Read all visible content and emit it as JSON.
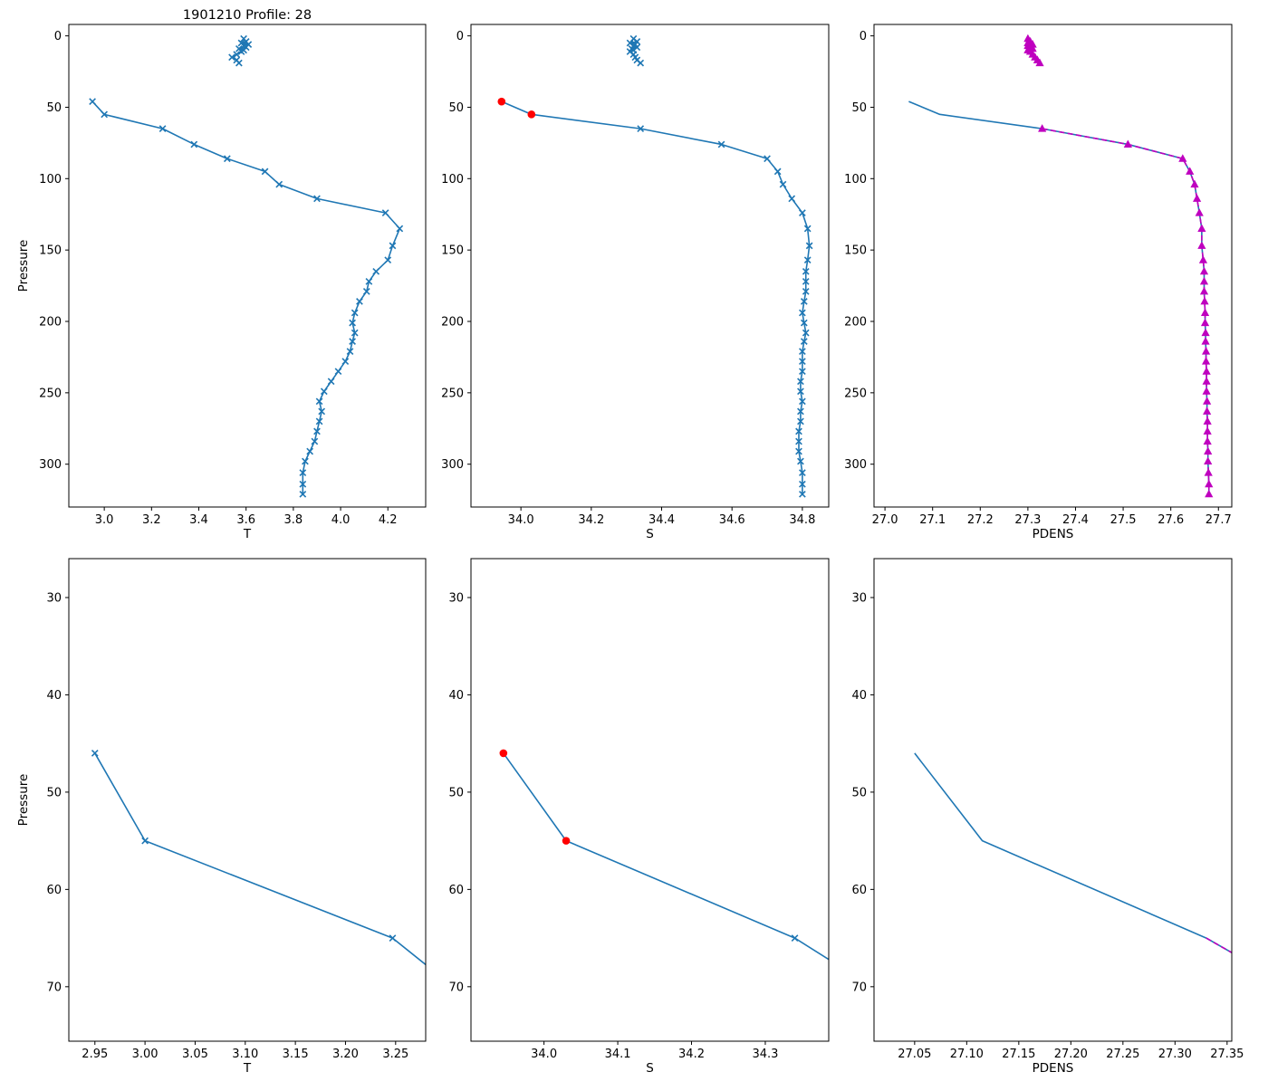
{
  "figure": {
    "background": "#ffffff",
    "colors": {
      "profile_line": "#1f77b4",
      "flagged_point": "#ff0000",
      "pdens_overlay": "#bf00bf",
      "axis": "#000000",
      "text": "#000000"
    }
  },
  "chart_data": [
    {
      "id": "T-full",
      "type": "line",
      "title": "1901210 Profile: 28",
      "xlabel": "T",
      "ylabel": "Pressure",
      "y_inverted": true,
      "xlim": [
        2.85,
        4.36
      ],
      "ylim": [
        -8,
        330
      ],
      "xticks": {
        "values": [
          3.0,
          3.2,
          3.4,
          3.6,
          3.8,
          4.0,
          4.2
        ],
        "labels": [
          "3.0",
          "3.2",
          "3.4",
          "3.6",
          "3.8",
          "4.0",
          "4.2"
        ]
      },
      "yticks": {
        "values": [
          0,
          50,
          100,
          150,
          200,
          250,
          300
        ],
        "labels": [
          "0",
          "50",
          "100",
          "150",
          "200",
          "250",
          "300"
        ]
      },
      "series": [
        {
          "name": "surface-cluster-T",
          "color": "#1f77b4",
          "line": true,
          "marker": "x",
          "marker_from": 0,
          "x": [
            3.59,
            3.6,
            3.58,
            3.61,
            3.59,
            3.6,
            3.57,
            3.59,
            3.58,
            3.56,
            3.54,
            3.56,
            3.57
          ],
          "y": [
            2,
            4,
            5,
            6,
            7,
            8,
            9,
            10,
            11,
            13,
            15,
            17,
            19
          ]
        },
        {
          "name": "main-profile-T",
          "color": "#1f77b4",
          "line": true,
          "marker": "x",
          "marker_from": 0,
          "x": [
            2.95,
            3.0,
            3.247,
            3.38,
            3.52,
            3.68,
            3.74,
            3.9,
            4.19,
            4.25,
            4.22,
            4.2,
            4.15,
            4.12,
            4.11,
            4.08,
            4.06,
            4.05,
            4.06,
            4.05,
            4.04,
            4.02,
            3.99,
            3.96,
            3.93,
            3.91,
            3.92,
            3.91,
            3.9,
            3.89,
            3.87,
            3.85,
            3.84,
            3.84,
            3.84
          ],
          "y": [
            46,
            55,
            65,
            76,
            86,
            95,
            104,
            114,
            124,
            135,
            147,
            157,
            165,
            172,
            179,
            186,
            194,
            201,
            208,
            214,
            221,
            228,
            235,
            242,
            249,
            256,
            263,
            270,
            277,
            284,
            291,
            298,
            306,
            314,
            321
          ]
        }
      ]
    },
    {
      "id": "S-full",
      "type": "line",
      "title": null,
      "xlabel": "S",
      "ylabel": null,
      "y_inverted": true,
      "xlim": [
        33.858,
        34.875
      ],
      "ylim": [
        -8,
        330
      ],
      "xticks": {
        "values": [
          34.0,
          34.2,
          34.4,
          34.6,
          34.8
        ],
        "labels": [
          "34.0",
          "34.2",
          "34.4",
          "34.6",
          "34.8"
        ]
      },
      "yticks": {
        "values": [
          0,
          50,
          100,
          150,
          200,
          250,
          300
        ],
        "labels": [
          "0",
          "50",
          "100",
          "150",
          "200",
          "250",
          "300"
        ]
      },
      "series": [
        {
          "name": "surface-cluster-S",
          "color": "#1f77b4",
          "line": true,
          "marker": "x",
          "marker_from": 0,
          "x": [
            34.32,
            34.33,
            34.31,
            34.325,
            34.32,
            34.33,
            34.315,
            34.32,
            34.31,
            34.32,
            34.325,
            34.33,
            34.34
          ],
          "y": [
            2,
            4,
            5,
            6,
            7,
            8,
            9,
            10,
            11,
            13,
            15,
            17,
            19
          ]
        },
        {
          "name": "main-profile-S",
          "color": "#1f77b4",
          "line": true,
          "marker": "x",
          "marker_from": 2,
          "x": [
            33.945,
            34.03,
            34.34,
            34.57,
            34.7,
            34.73,
            34.745,
            34.77,
            34.8,
            34.815,
            34.82,
            34.815,
            34.81,
            34.81,
            34.81,
            34.805,
            34.8,
            34.805,
            34.81,
            34.805,
            34.8,
            34.8,
            34.8,
            34.795,
            34.795,
            34.8,
            34.795,
            34.795,
            34.79,
            34.79,
            34.79,
            34.795,
            34.8,
            34.8,
            34.8
          ],
          "y": [
            46,
            55,
            65,
            76,
            86,
            95,
            104,
            114,
            124,
            135,
            147,
            157,
            165,
            172,
            179,
            186,
            194,
            201,
            208,
            214,
            221,
            228,
            235,
            242,
            249,
            256,
            263,
            270,
            277,
            284,
            291,
            298,
            306,
            314,
            321
          ]
        },
        {
          "name": "flagged-points-S",
          "color": "#ff0000",
          "line": false,
          "marker": "circle",
          "marker_from": 0,
          "x": [
            33.945,
            34.03
          ],
          "y": [
            46,
            55
          ]
        }
      ]
    },
    {
      "id": "PDENS-full",
      "type": "line",
      "title": null,
      "xlabel": "PDENS",
      "ylabel": null,
      "y_inverted": true,
      "xlim": [
        26.977,
        27.728
      ],
      "ylim": [
        -8,
        330
      ],
      "xticks": {
        "values": [
          27.0,
          27.1,
          27.2,
          27.3,
          27.4,
          27.5,
          27.6,
          27.7
        ],
        "labels": [
          "27.0",
          "27.1",
          "27.2",
          "27.3",
          "27.4",
          "27.5",
          "27.6",
          "27.7"
        ]
      },
      "yticks": {
        "values": [
          0,
          50,
          100,
          150,
          200,
          250,
          300
        ],
        "labels": [
          "0",
          "50",
          "100",
          "150",
          "200",
          "250",
          "300"
        ]
      },
      "series": [
        {
          "name": "surface-cluster-pdens-line",
          "color": "#1f77b4",
          "line": true,
          "marker": null,
          "marker_from": 0,
          "x": [
            27.3,
            27.305,
            27.3,
            27.31,
            27.3,
            27.305,
            27.31,
            27.3,
            27.305,
            27.31,
            27.315,
            27.32,
            27.325
          ],
          "y": [
            2,
            4,
            5,
            6,
            7,
            8,
            9,
            10,
            11,
            13,
            15,
            17,
            19
          ]
        },
        {
          "name": "surface-cluster-pdens-overlay",
          "color": "#bf00bf",
          "line": false,
          "marker": "triangle",
          "marker_from": 0,
          "x": [
            27.3,
            27.305,
            27.3,
            27.31,
            27.3,
            27.305,
            27.31,
            27.3,
            27.305,
            27.31,
            27.315,
            27.32,
            27.325
          ],
          "y": [
            2,
            4,
            5,
            6,
            7,
            8,
            9,
            10,
            11,
            13,
            15,
            17,
            19
          ]
        },
        {
          "name": "main-profile-pdens",
          "color": "#1f77b4",
          "line": true,
          "marker": null,
          "marker_from": 0,
          "x": [
            27.05,
            27.115,
            27.33,
            27.51,
            27.625,
            27.64,
            27.65,
            27.655,
            27.66,
            27.665,
            27.665,
            27.668,
            27.67,
            27.67,
            27.67,
            27.671,
            27.672,
            27.672,
            27.673,
            27.673,
            27.674,
            27.674,
            27.675,
            27.675,
            27.675,
            27.676,
            27.676,
            27.677,
            27.677,
            27.677,
            27.678,
            27.678,
            27.679,
            27.68,
            27.68
          ],
          "y": [
            46,
            55,
            65,
            76,
            86,
            95,
            104,
            114,
            124,
            135,
            147,
            157,
            165,
            172,
            179,
            186,
            194,
            201,
            208,
            214,
            221,
            228,
            235,
            242,
            249,
            256,
            263,
            270,
            277,
            284,
            291,
            298,
            306,
            314,
            321
          ]
        },
        {
          "name": "pdens-overlay-dashed",
          "color": "#bf00bf",
          "line": true,
          "dash": true,
          "marker": "triangle",
          "marker_from": 0,
          "x": [
            27.33,
            27.51,
            27.625,
            27.64,
            27.65,
            27.655,
            27.66,
            27.665,
            27.665,
            27.668,
            27.67,
            27.67,
            27.67,
            27.671,
            27.672,
            27.672,
            27.673,
            27.673,
            27.674,
            27.674,
            27.675,
            27.675,
            27.675,
            27.676,
            27.676,
            27.677,
            27.677,
            27.677,
            27.678,
            27.678,
            27.679,
            27.68,
            27.68
          ],
          "y": [
            65,
            76,
            86,
            95,
            104,
            114,
            124,
            135,
            147,
            157,
            165,
            172,
            179,
            186,
            194,
            201,
            208,
            214,
            221,
            228,
            235,
            242,
            249,
            256,
            263,
            270,
            277,
            284,
            291,
            298,
            306,
            314,
            321
          ]
        }
      ]
    },
    {
      "id": "T-zoom",
      "type": "line",
      "title": null,
      "xlabel": "T",
      "ylabel": "Pressure",
      "y_inverted": true,
      "xlim": [
        2.924,
        3.28
      ],
      "ylim": [
        26,
        75.6
      ],
      "xticks": {
        "values": [
          2.95,
          3.0,
          3.05,
          3.1,
          3.15,
          3.2,
          3.25
        ],
        "labels": [
          "2.95",
          "3.00",
          "3.05",
          "3.10",
          "3.15",
          "3.20",
          "3.25"
        ]
      },
      "yticks": {
        "values": [
          30,
          40,
          50,
          60,
          70
        ],
        "labels": [
          "30",
          "40",
          "50",
          "60",
          "70"
        ]
      },
      "series": [
        {
          "name": "zoom-profile-T",
          "color": "#1f77b4",
          "line": true,
          "marker": "x",
          "marker_from": 0,
          "x": [
            2.95,
            3.0,
            3.247,
            3.38
          ],
          "y": [
            46,
            55,
            65,
            76
          ]
        }
      ]
    },
    {
      "id": "S-zoom",
      "type": "line",
      "title": null,
      "xlabel": "S",
      "ylabel": null,
      "y_inverted": true,
      "xlim": [
        33.901,
        34.386
      ],
      "ylim": [
        26,
        75.6
      ],
      "xticks": {
        "values": [
          34.0,
          34.1,
          34.2,
          34.3
        ],
        "labels": [
          "34.0",
          "34.1",
          "34.2",
          "34.3"
        ]
      },
      "yticks": {
        "values": [
          30,
          40,
          50,
          60,
          70
        ],
        "labels": [
          "30",
          "40",
          "50",
          "60",
          "70"
        ]
      },
      "series": [
        {
          "name": "zoom-profile-S",
          "color": "#1f77b4",
          "line": true,
          "marker": "x",
          "marker_from": 2,
          "x": [
            33.945,
            34.03,
            34.34,
            34.57
          ],
          "y": [
            46,
            55,
            65,
            76
          ]
        },
        {
          "name": "zoom-flagged-points-S",
          "color": "#ff0000",
          "line": false,
          "marker": "circle",
          "marker_from": 0,
          "x": [
            33.945,
            34.03
          ],
          "y": [
            46,
            55
          ]
        }
      ]
    },
    {
      "id": "PDENS-zoom",
      "type": "line",
      "title": null,
      "xlabel": "PDENS",
      "ylabel": null,
      "y_inverted": true,
      "xlim": [
        27.011,
        27.3545
      ],
      "ylim": [
        26,
        75.6
      ],
      "xticks": {
        "values": [
          27.05,
          27.1,
          27.15,
          27.2,
          27.25,
          27.3,
          27.35
        ],
        "labels": [
          "27.05",
          "27.10",
          "27.15",
          "27.20",
          "27.25",
          "27.30",
          "27.35"
        ]
      },
      "yticks": {
        "values": [
          30,
          40,
          50,
          60,
          70
        ],
        "labels": [
          "30",
          "40",
          "50",
          "60",
          "70"
        ]
      },
      "series": [
        {
          "name": "zoom-profile-pdens",
          "color": "#1f77b4",
          "line": true,
          "marker": null,
          "marker_from": 0,
          "x": [
            27.05,
            27.115,
            27.33,
            27.51
          ],
          "y": [
            46,
            55,
            65,
            76
          ]
        },
        {
          "name": "zoom-pdens-overlay",
          "color": "#bf00bf",
          "line": true,
          "dash": true,
          "marker": null,
          "marker_from": 0,
          "x": [
            27.33,
            27.51
          ],
          "y": [
            65,
            76
          ]
        }
      ]
    }
  ]
}
